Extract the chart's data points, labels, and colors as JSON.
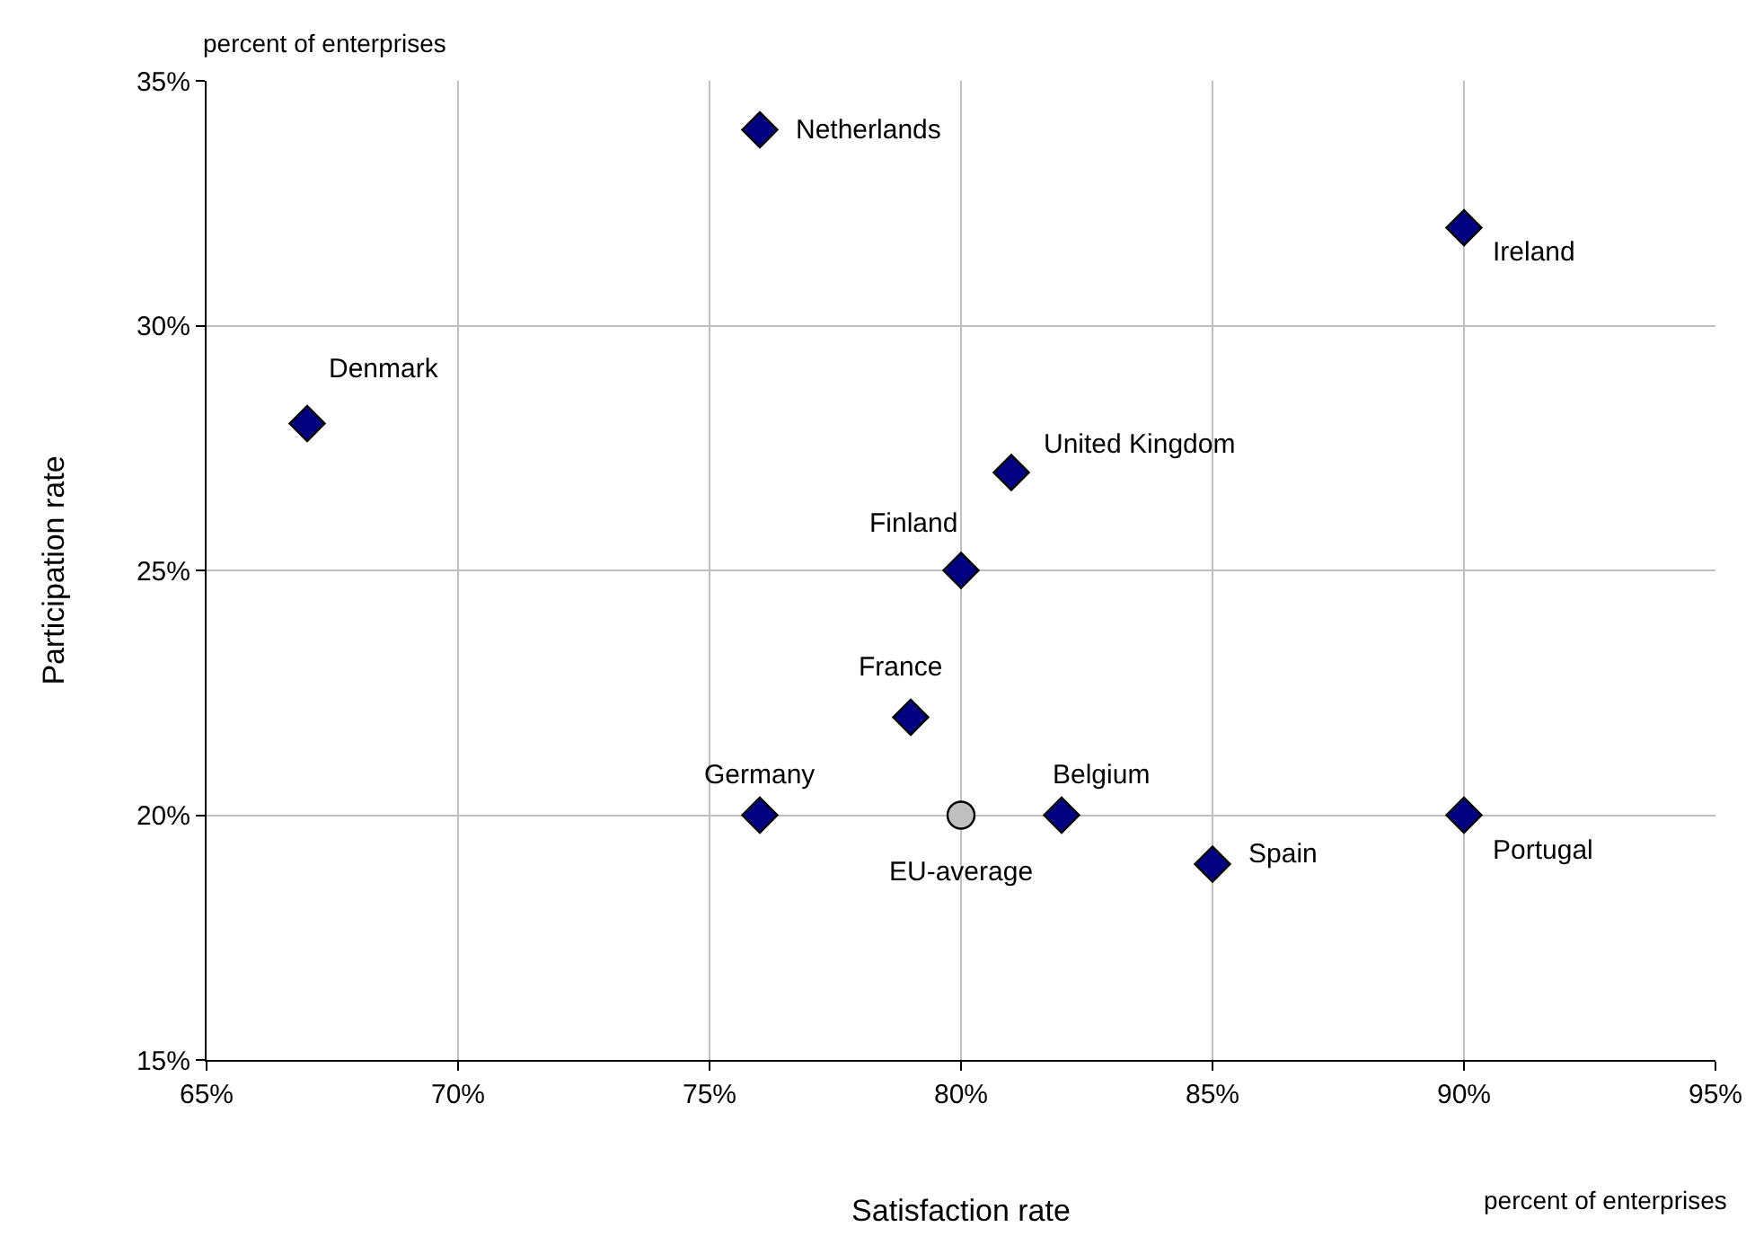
{
  "chart_data": {
    "type": "scatter",
    "xlabel": "Satisfaction rate",
    "ylabel": "Participation rate",
    "xlim": [
      65,
      95
    ],
    "xticks": [
      {
        "value": 65,
        "label": "65%"
      },
      {
        "value": 70,
        "label": "70%"
      },
      {
        "value": 75,
        "label": "75%"
      },
      {
        "value": 80,
        "label": "80%"
      },
      {
        "value": 85,
        "label": "85%"
      },
      {
        "value": 90,
        "label": "90%"
      },
      {
        "value": 95,
        "label": "95%"
      }
    ],
    "ylim": [
      15,
      35
    ],
    "yticks": [
      {
        "value": 15,
        "label": "15%"
      },
      {
        "value": 20,
        "label": "20%"
      },
      {
        "value": 25,
        "label": "25%"
      },
      {
        "value": 30,
        "label": "30%"
      },
      {
        "value": 35,
        "label": "35%"
      }
    ],
    "grid": true,
    "legend": false,
    "series": [
      {
        "color": "#000080",
        "marker": "diamond",
        "x": [
          76,
          90,
          67,
          81,
          80,
          79,
          76,
          82,
          85,
          90
        ],
        "values": [
          34,
          32,
          28,
          27,
          25,
          22,
          20,
          20,
          19,
          20
        ]
      },
      {
        "name": "EU-average",
        "color": "#c0c0c0",
        "marker": "circle",
        "x": [
          80
        ],
        "values": [
          20
        ]
      }
    ],
    "annotations": [
      "percent of enterprises",
      "percent of enterprises",
      {
        "text": "Netherlands",
        "x": 76,
        "y": 34
      },
      {
        "text": "Ireland",
        "x": 90,
        "y": 32
      },
      {
        "text": "Denmark",
        "x": 67,
        "y": 28
      },
      {
        "text": "United Kingdom",
        "x": 81,
        "y": 27
      },
      {
        "text": "Finland",
        "x": 80,
        "y": 25
      },
      {
        "text": "France",
        "x": 79,
        "y": 22
      },
      {
        "text": "Germany",
        "x": 76,
        "y": 20
      },
      {
        "text": "Belgium",
        "x": 82,
        "y": 20
      },
      {
        "text": "Spain",
        "x": 85,
        "y": 19
      },
      {
        "text": "Portugal",
        "x": 90,
        "y": 20
      }
    ]
  }
}
